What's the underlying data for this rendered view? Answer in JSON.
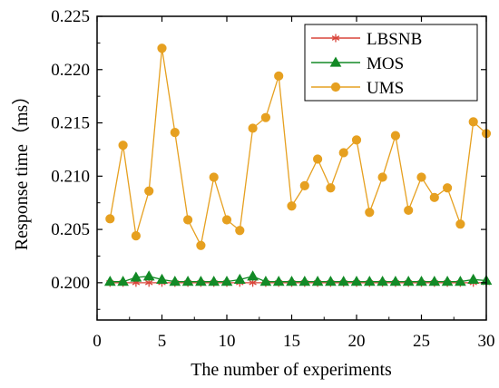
{
  "chart_data": {
    "type": "line",
    "xlabel": "The number of experiments",
    "ylabel": "Response time（ms）",
    "xlim": [
      0,
      30
    ],
    "ylim": [
      0.1965,
      0.225
    ],
    "x_ticks": [
      0,
      5,
      10,
      15,
      20,
      25,
      30
    ],
    "x_tick_labels": [
      "0",
      "5",
      "10",
      "15",
      "20",
      "25",
      "30"
    ],
    "y_ticks": [
      0.2,
      0.205,
      0.21,
      0.215,
      0.22,
      0.225
    ],
    "y_tick_labels": [
      "0.200",
      "0.205",
      "0.210",
      "0.215",
      "0.220",
      "0.225"
    ],
    "grid": false,
    "legend_position": "top-right",
    "x": [
      1,
      2,
      3,
      4,
      5,
      6,
      7,
      8,
      9,
      10,
      11,
      12,
      13,
      14,
      15,
      16,
      17,
      18,
      19,
      20,
      21,
      22,
      23,
      24,
      25,
      26,
      27,
      28,
      29,
      30
    ],
    "series": [
      {
        "name": "LBSNB",
        "color": "#d9453a",
        "marker": "asterisk",
        "values": [
          0.2,
          0.2,
          0.2,
          0.2,
          0.2,
          0.2,
          0.2,
          0.2,
          0.2,
          0.2,
          0.2,
          0.2,
          0.2,
          0.2,
          0.2,
          0.2,
          0.2,
          0.2,
          0.2,
          0.2,
          0.2,
          0.2,
          0.2,
          0.2,
          0.2,
          0.2,
          0.2,
          0.2,
          0.2,
          0.2
        ]
      },
      {
        "name": "MOS",
        "color": "#138a26",
        "marker": "triangle",
        "values": [
          0.2001,
          0.2001,
          0.2005,
          0.2006,
          0.2003,
          0.2001,
          0.2001,
          0.2001,
          0.2001,
          0.2001,
          0.2003,
          0.2006,
          0.2001,
          0.2001,
          0.2001,
          0.2001,
          0.2001,
          0.2001,
          0.2001,
          0.2001,
          0.2001,
          0.2001,
          0.2001,
          0.2001,
          0.2001,
          0.2001,
          0.2001,
          0.2001,
          0.2003,
          0.2002
        ]
      },
      {
        "name": "UMS",
        "color": "#e6a020",
        "marker": "circle",
        "values": [
          0.206,
          0.2129,
          0.2044,
          0.2086,
          0.222,
          0.2141,
          0.2059,
          0.2035,
          0.2099,
          0.2059,
          0.2049,
          0.2145,
          0.2155,
          0.2194,
          0.2072,
          0.2091,
          0.2116,
          0.2089,
          0.2122,
          0.2134,
          0.2066,
          0.2099,
          0.2138,
          0.2068,
          0.2099,
          0.208,
          0.2089,
          0.2055,
          0.2151,
          0.214
        ]
      }
    ]
  }
}
